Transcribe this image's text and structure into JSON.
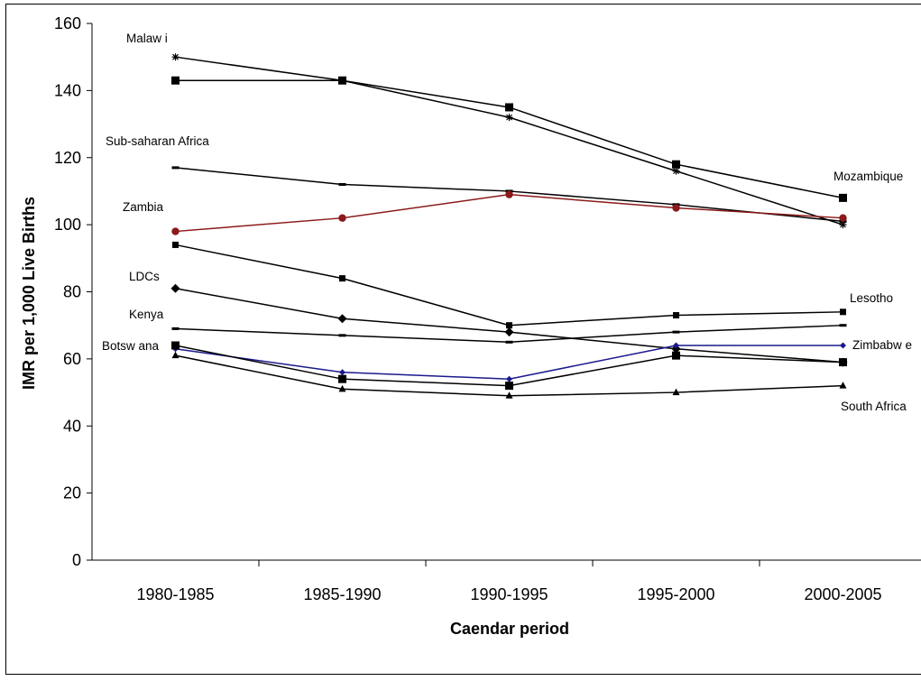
{
  "chart_data": {
    "type": "line",
    "xlabel": "Caendar period",
    "ylabel": "IMR per 1,000 Live Births",
    "ylim": [
      0,
      160
    ],
    "yticks": [
      0,
      20,
      40,
      60,
      80,
      100,
      120,
      140,
      160
    ],
    "grid": false,
    "legend": "none (series labelled inline)",
    "categories": [
      "1980-1985",
      "1985-1990",
      "1990-1995",
      "1995-2000",
      "2000-2005"
    ],
    "series": [
      {
        "name": "Malawi",
        "label": "Malaw i",
        "marker": "star",
        "color": "#000000",
        "values": [
          150,
          143,
          132,
          116,
          100
        ]
      },
      {
        "name": "Mozambique",
        "label": "Mozambique",
        "marker": "square",
        "color": "#000000",
        "values": [
          143,
          143,
          135,
          118,
          108
        ]
      },
      {
        "name": "Sub-saharan Africa",
        "label": "Sub-saharan Africa",
        "marker": "dash",
        "color": "#000000",
        "values": [
          117,
          112,
          110,
          106,
          101
        ]
      },
      {
        "name": "Zambia",
        "label": "Zambia",
        "marker": "circle",
        "color": "#8b1a1a",
        "values": [
          98,
          102,
          109,
          105,
          102
        ]
      },
      {
        "name": "Lesotho",
        "label": "Lesotho",
        "marker": "square-small",
        "color": "#000000",
        "values": [
          94,
          84,
          70,
          73,
          74
        ]
      },
      {
        "name": "LDCs",
        "label": "LDCs",
        "marker": "diamond",
        "color": "#000000",
        "values": [
          81,
          72,
          68,
          63,
          59
        ]
      },
      {
        "name": "Kenya",
        "label": "Kenya",
        "marker": "dash",
        "color": "#000000",
        "values": [
          69,
          67,
          65,
          68,
          70
        ]
      },
      {
        "name": "Zimbabwe",
        "label": "Zimbabw e",
        "marker": "diamond-small",
        "color": "#1a1a8c",
        "values": [
          63,
          56,
          54,
          64,
          64
        ]
      },
      {
        "name": "Botswana",
        "label": "Botsw ana",
        "marker": "square",
        "color": "#000000",
        "values": [
          64,
          54,
          52,
          61,
          59
        ]
      },
      {
        "name": "South Africa",
        "label": "South Africa",
        "marker": "triangle",
        "color": "#000000",
        "values": [
          61,
          51,
          49,
          50,
          52
        ]
      }
    ]
  }
}
